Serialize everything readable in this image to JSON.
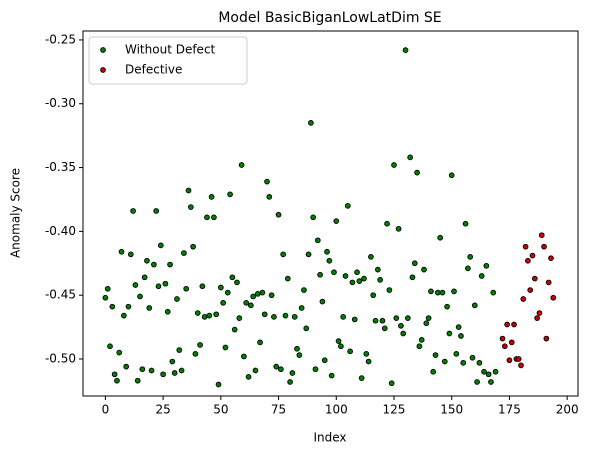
{
  "chart_data": {
    "type": "scatter",
    "title": "Model BasicBiganLowLatDim SE",
    "xlabel": "Index",
    "ylabel": "Anomaly Score",
    "xlim": [
      -9.7,
      204.7
    ],
    "ylim": [
      -0.529,
      -0.243
    ],
    "xticks": [
      0,
      25,
      50,
      75,
      100,
      125,
      150,
      175,
      200
    ],
    "yticks": [
      {
        "value": -0.5,
        "label": "-0.50"
      },
      -0.45,
      {
        "value": -0.4,
        "label": "-0.40"
      },
      -0.35,
      {
        "value": -0.3,
        "label": "-0.30"
      },
      -0.25
    ],
    "legend": "upper left",
    "series": [
      {
        "name": "Without Defect",
        "color": "#008000",
        "x": [
          0,
          1,
          2,
          3,
          4,
          5,
          6,
          7,
          8,
          9,
          10,
          11,
          12,
          13,
          14,
          15,
          16,
          17,
          18,
          19,
          20,
          21,
          22,
          23,
          24,
          25,
          26,
          27,
          28,
          29,
          30,
          31,
          32,
          33,
          34,
          35,
          36,
          37,
          38,
          39,
          40,
          41,
          42,
          43,
          44,
          45,
          46,
          47,
          48,
          49,
          50,
          51,
          52,
          53,
          54,
          55,
          56,
          57,
          58,
          59,
          60,
          61,
          62,
          63,
          64,
          65,
          66,
          67,
          68,
          69,
          70,
          71,
          72,
          73,
          74,
          75,
          76,
          77,
          78,
          79,
          80,
          81,
          82,
          83,
          84,
          85,
          86,
          87,
          88,
          89,
          90,
          91,
          92,
          93,
          94,
          95,
          96,
          97,
          98,
          99,
          100,
          101,
          102,
          103,
          104,
          105,
          106,
          107,
          108,
          109,
          110,
          111,
          112,
          113,
          114,
          115,
          116,
          117,
          118,
          119,
          120,
          121,
          122,
          123,
          124,
          125,
          126,
          127,
          128,
          129,
          130,
          131,
          132,
          133,
          134,
          135,
          136,
          137,
          138,
          139,
          140,
          141,
          142,
          143,
          144,
          145,
          146,
          147,
          148,
          149,
          150,
          151,
          152,
          153,
          154,
          155,
          156,
          157,
          158,
          159,
          160,
          161,
          162,
          163,
          164,
          165,
          166,
          167,
          168,
          169
        ],
        "values": [
          -0.452,
          -0.445,
          -0.49,
          -0.459,
          -0.512,
          -0.517,
          -0.495,
          -0.416,
          -0.466,
          -0.506,
          -0.459,
          -0.418,
          -0.384,
          -0.442,
          -0.517,
          -0.451,
          -0.508,
          -0.436,
          -0.423,
          -0.46,
          -0.509,
          -0.426,
          -0.384,
          -0.443,
          -0.411,
          -0.512,
          -0.441,
          -0.463,
          -0.426,
          -0.502,
          -0.511,
          -0.453,
          -0.493,
          -0.509,
          -0.417,
          -0.445,
          -0.368,
          -0.381,
          -0.412,
          -0.496,
          -0.464,
          -0.489,
          -0.443,
          -0.467,
          -0.389,
          -0.466,
          -0.373,
          -0.389,
          -0.465,
          -0.52,
          -0.444,
          -0.456,
          -0.491,
          -0.448,
          -0.371,
          -0.436,
          -0.477,
          -0.44,
          -0.468,
          -0.348,
          -0.498,
          -0.456,
          -0.514,
          -0.458,
          -0.451,
          -0.509,
          -0.449,
          -0.487,
          -0.448,
          -0.465,
          -0.361,
          -0.373,
          -0.45,
          -0.467,
          -0.506,
          -0.387,
          -0.508,
          -0.418,
          -0.466,
          -0.437,
          -0.518,
          -0.511,
          -0.467,
          -0.492,
          -0.497,
          -0.46,
          -0.446,
          -0.476,
          -0.418,
          -0.315,
          -0.389,
          -0.508,
          -0.407,
          -0.434,
          -0.455,
          -0.501,
          -0.416,
          -0.423,
          -0.513,
          -0.432,
          -0.392,
          -0.486,
          -0.49,
          -0.467,
          -0.435,
          -0.38,
          -0.494,
          -0.44,
          -0.469,
          -0.432,
          -0.439,
          -0.515,
          -0.437,
          -0.496,
          -0.502,
          -0.42,
          -0.45,
          -0.47,
          -0.43,
          -0.438,
          -0.47,
          -0.476,
          -0.394,
          -0.446,
          -0.519,
          -0.348,
          -0.468,
          -0.398,
          -0.474,
          -0.48,
          -0.258,
          -0.468,
          -0.342,
          -0.436,
          -0.425,
          -0.354,
          -0.49,
          -0.485,
          -0.43,
          -0.472,
          -0.468,
          -0.447,
          -0.51,
          -0.497,
          -0.448,
          -0.405,
          -0.448,
          -0.502,
          -0.459,
          -0.48,
          -0.356,
          -0.447,
          -0.496,
          -0.475,
          -0.482,
          -0.503,
          -0.394,
          -0.429,
          -0.42,
          -0.499,
          -0.458,
          -0.518,
          -0.503,
          -0.435,
          -0.51,
          -0.427,
          -0.512,
          -0.518,
          -0.448,
          -0.51
        ]
      },
      {
        "name": "Defective",
        "color": "#cc0000",
        "x": [
          172,
          173,
          174,
          175,
          176,
          177,
          178,
          179,
          180,
          181,
          182,
          183,
          184,
          185,
          186,
          187,
          188,
          189,
          190,
          191,
          192,
          193,
          194
        ],
        "values": [
          -0.484,
          -0.49,
          -0.473,
          -0.501,
          -0.487,
          -0.473,
          -0.5,
          -0.5,
          -0.505,
          -0.453,
          -0.412,
          -0.423,
          -0.446,
          -0.419,
          -0.437,
          -0.468,
          -0.464,
          -0.403,
          -0.412,
          -0.484,
          -0.44,
          -0.421,
          -0.452
        ]
      }
    ]
  }
}
